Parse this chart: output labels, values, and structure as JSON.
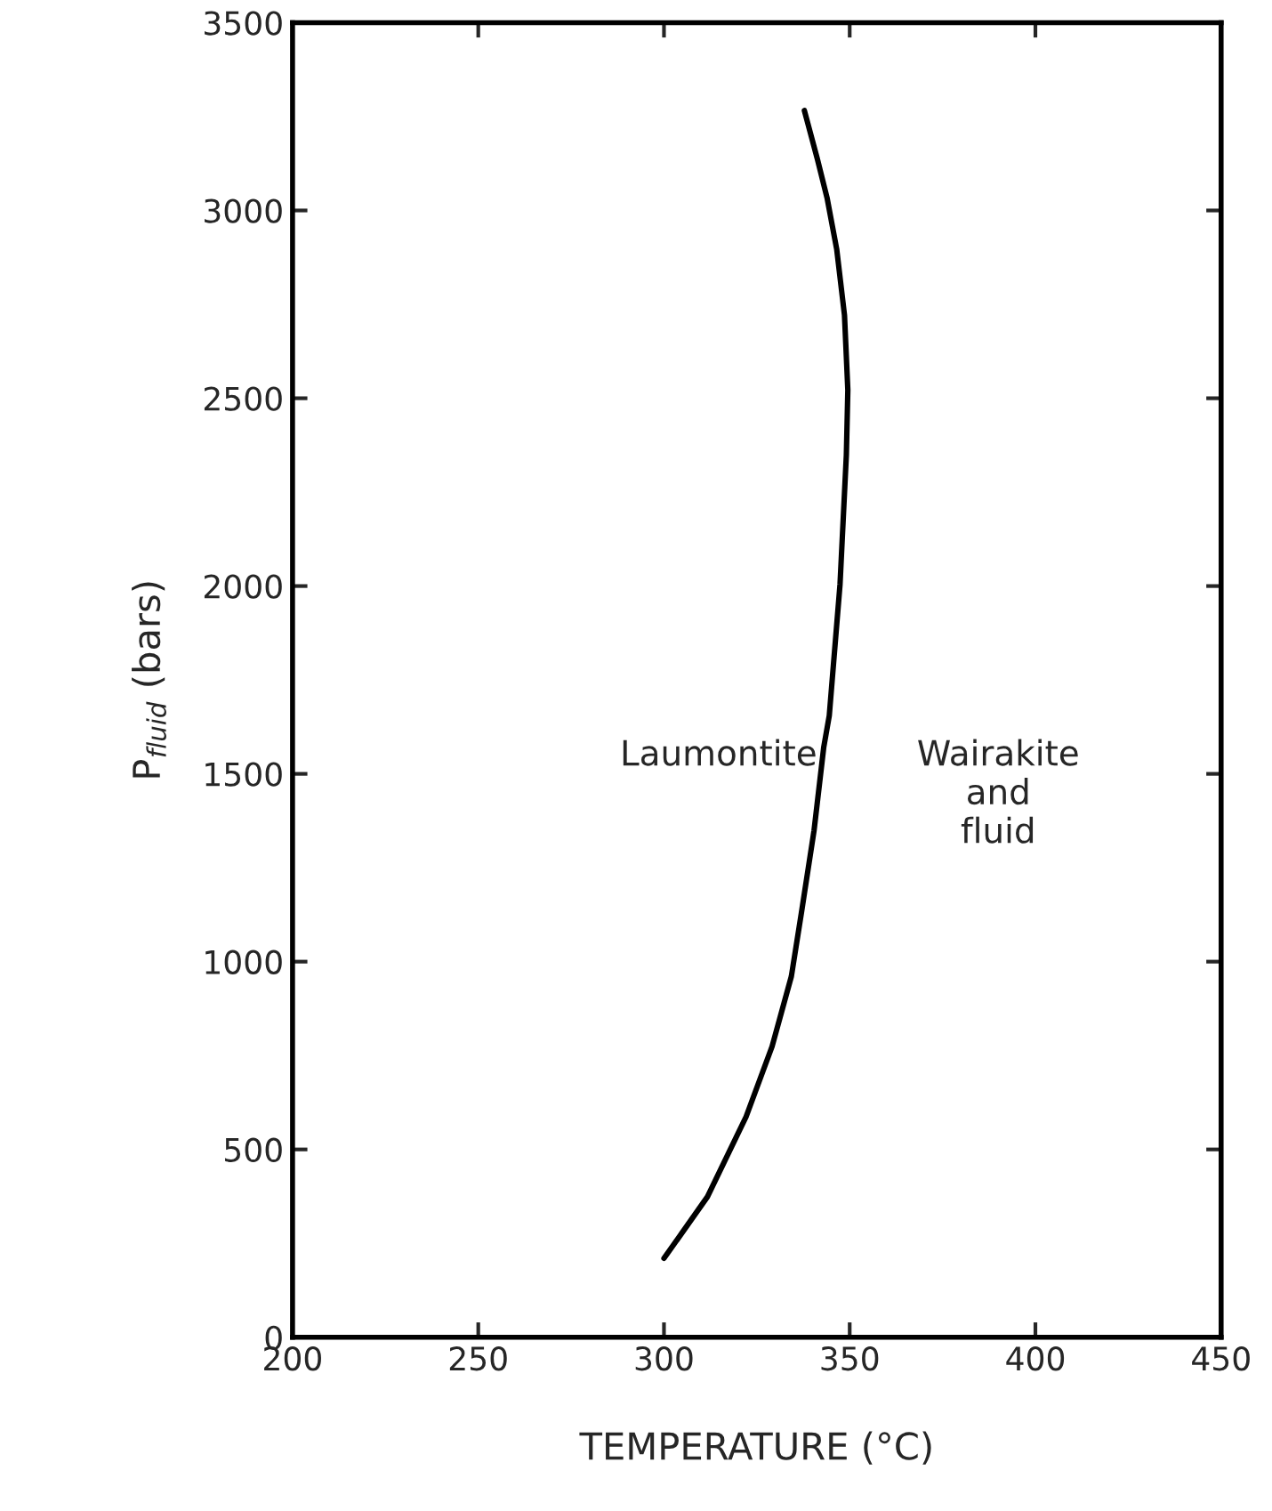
{
  "chart_data": {
    "type": "line",
    "xlabel": "TEMPERATURE (°C)",
    "ylabel": "P$_{fluid}$ (bars)",
    "series": [
      {
        "color": "#000000",
        "x": [
          300,
          311.7,
          322.1,
          329.1,
          334.3,
          337,
          340.4,
          343,
          344.5,
          347.4,
          349.1,
          349.5,
          348.6,
          346.5,
          343.9,
          341.3,
          337.8
        ],
        "values": [
          210,
          374,
          587,
          774,
          961,
          1130,
          1349,
          1570,
          1655,
          2005,
          2349,
          2522,
          2721,
          2897,
          3034,
          3137,
          3266
        ]
      }
    ],
    "xlim": [
      200,
      450
    ],
    "xticks": [
      200,
      250,
      300,
      350,
      400,
      450
    ],
    "ylim": [
      0,
      3500
    ],
    "yticks": [
      0,
      500,
      1000,
      1500,
      2000,
      2500,
      3000,
      3500
    ],
    "annotations": [
      "Laumontite",
      "Wairakite\nand\nfluid"
    ],
    "grid": false,
    "marker": "none",
    "line_style": "solid"
  }
}
